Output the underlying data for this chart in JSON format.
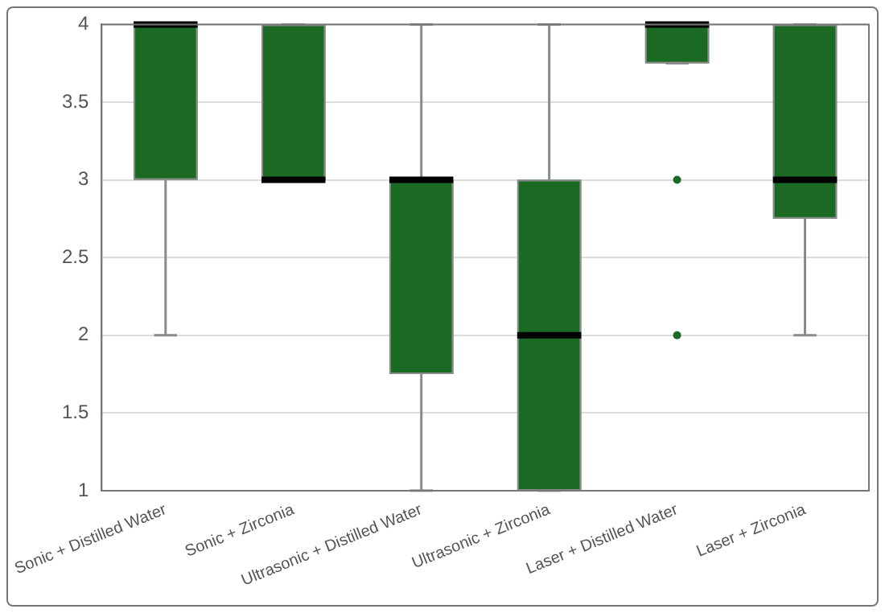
{
  "chart_data": {
    "type": "box",
    "categories": [
      "Sonic + Distilled Water",
      "Sonic + Zirconia",
      "Ultrasonic + Distilled Water",
      "Ultrasonic + Zirconia",
      "Laser + Distilled Water",
      "Laser + Zirconia"
    ],
    "color": "#1b6a24",
    "boxes": [
      {
        "low": 2,
        "q1": 3,
        "median": 4,
        "q3": 4,
        "high": 4
      },
      {
        "low": 3,
        "q1": 3,
        "median": 3,
        "q3": 4,
        "high": 4
      },
      {
        "low": 1,
        "q1": 1.75,
        "median": 3,
        "q3": 3,
        "high": 4
      },
      {
        "low": 1,
        "q1": 1,
        "median": 2,
        "q3": 3,
        "high": 4
      },
      {
        "low": 3.75,
        "q1": 3.75,
        "median": 4,
        "q3": 4,
        "high": 4,
        "outliers": [
          3,
          2
        ]
      },
      {
        "low": 2,
        "q1": 2.75,
        "median": 3,
        "q3": 4,
        "high": 4
      }
    ],
    "ylim": [
      1,
      4
    ],
    "yticks": [
      1,
      1.5,
      2,
      2.5,
      3,
      3.5,
      4
    ],
    "grid": "y",
    "legend": false
  }
}
